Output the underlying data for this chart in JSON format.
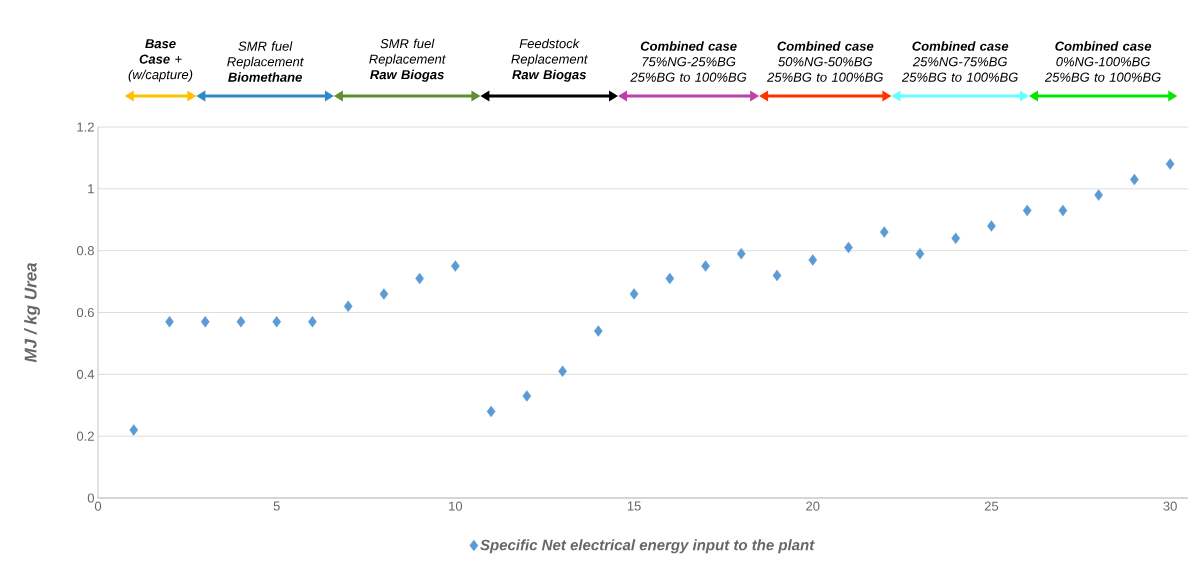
{
  "chart_data": {
    "type": "scatter",
    "ylabel": "MJ / kg Urea",
    "xlim": [
      0,
      30.5
    ],
    "xticks": [
      0,
      5,
      10,
      15,
      20,
      25,
      30
    ],
    "ylim": [
      0,
      1.2
    ],
    "yticks": [
      0,
      0.2,
      0.4,
      0.6,
      0.8,
      1,
      1.2
    ],
    "grid": "y",
    "marker": "diamond",
    "legend": "bottom",
    "series": [
      {
        "name": "Specific Net electrical energy input to the plant",
        "color": "#5b9bd5",
        "x": [
          1,
          2,
          3,
          4,
          5,
          6,
          7,
          8,
          9,
          10,
          11,
          12,
          13,
          14,
          15,
          16,
          17,
          18,
          19,
          20,
          21,
          22,
          23,
          24,
          25,
          26,
          27,
          28,
          29,
          30
        ],
        "values": [
          0.22,
          0.57,
          0.57,
          0.57,
          0.57,
          0.57,
          0.62,
          0.66,
          0.71,
          0.75,
          0.28,
          0.33,
          0.41,
          0.54,
          0.66,
          0.71,
          0.75,
          0.79,
          0.72,
          0.77,
          0.81,
          0.86,
          0.79,
          0.84,
          0.88,
          0.93,
          0.93,
          0.98,
          1.03,
          1.08
        ]
      }
    ],
    "annotations": [
      "**Base Case** + (w/capture)",
      "SMR fuel Replacement **Biomethane**",
      "SMR fuel Replacement **Raw Biogas**",
      "Feedstock Replacement **Raw Biogas**",
      "**Combined case** 75%NG-25%BG 25%BG to 100%BG",
      "**Combined case** 50%NG-50%BG 25%BG to 100%BG",
      "**Combined case** 25%NG-75%BG 25%BG to 100%BG",
      "**Combined case** 0%NG-100%BG 25%BG to 100%BG"
    ]
  }
}
